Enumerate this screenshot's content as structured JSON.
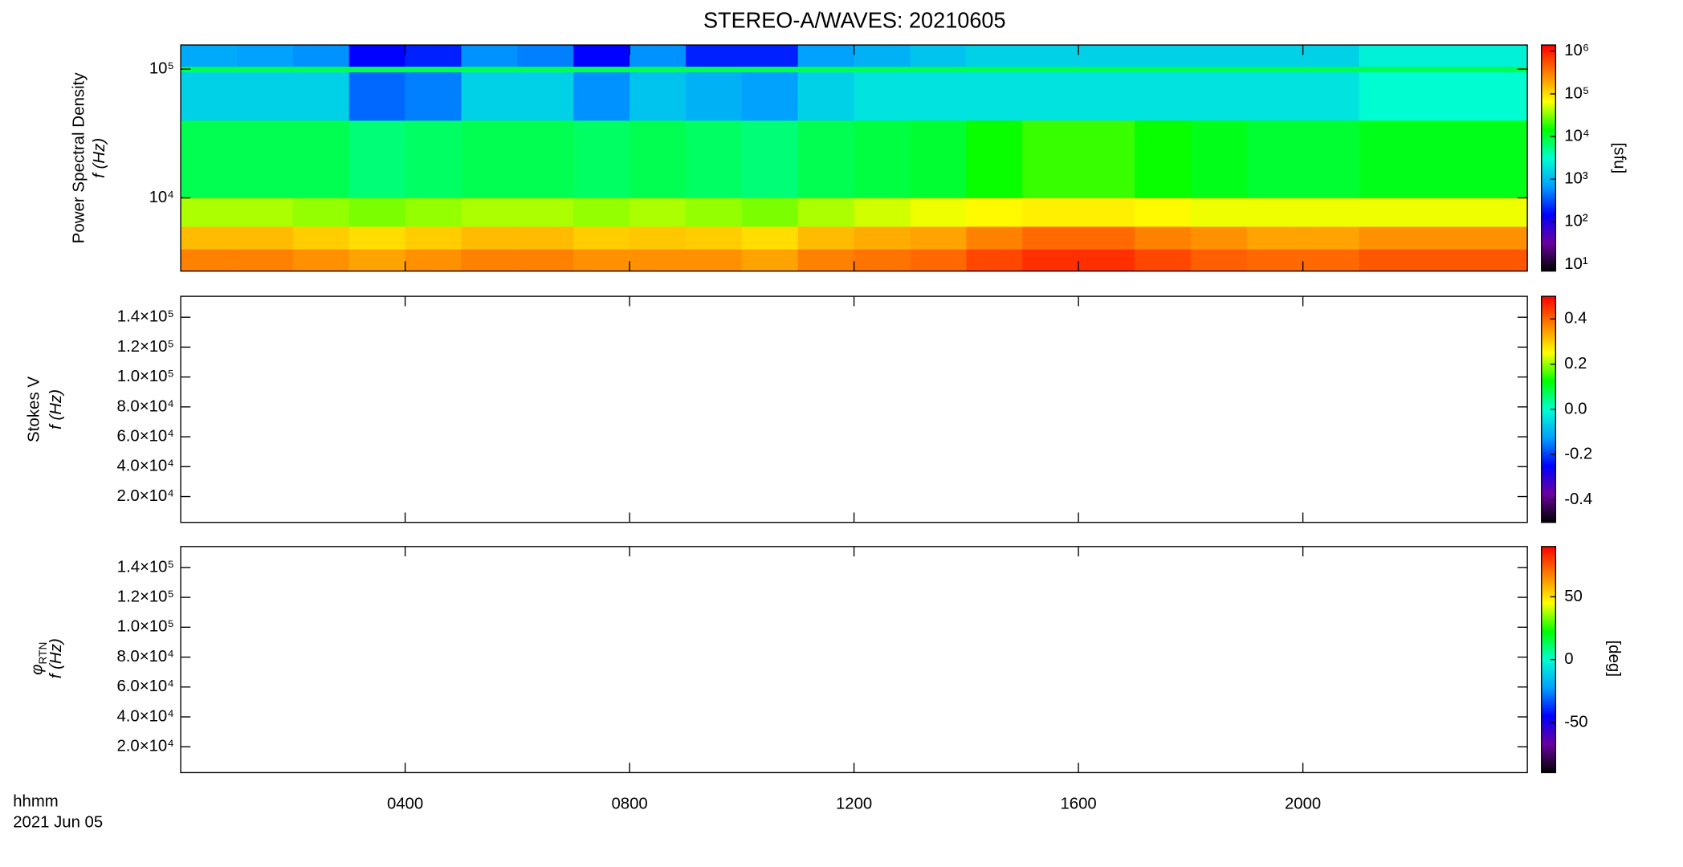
{
  "chart_data": [
    {
      "type": "heatmap",
      "title": "STEREO-A/WAVES: 20210605",
      "ylabel": [
        "Power Spectral Density",
        "f (Hz)"
      ],
      "xlim": [
        0,
        24
      ],
      "xticks": [
        4,
        8,
        12,
        16,
        20
      ],
      "ylog": true,
      "ylim": [
        2700,
        154000
      ],
      "yticks": [
        {
          "value": 10000,
          "label": "10⁴"
        },
        {
          "value": 100000,
          "label": "10⁵"
        }
      ],
      "x_edges": [
        0,
        1,
        2,
        3,
        4,
        5,
        6,
        7,
        8,
        9,
        10,
        11,
        12,
        13,
        14,
        15,
        16,
        17,
        18,
        19,
        20,
        21,
        22,
        23,
        24
      ],
      "y_edges": [
        2700,
        4000,
        6000,
        10000,
        40000,
        95000,
        105000,
        154000
      ],
      "z": [
        [
          300000,
          300000,
          250000,
          200000,
          250000,
          300000,
          300000,
          250000,
          250000,
          250000,
          200000,
          300000,
          350000,
          400000,
          600000,
          800000,
          800000,
          600000,
          450000,
          400000,
          400000,
          500000,
          500000,
          500000
        ],
        [
          150000,
          150000,
          120000,
          100000,
          120000,
          150000,
          150000,
          120000,
          130000,
          120000,
          100000,
          150000,
          180000,
          200000,
          300000,
          400000,
          400000,
          300000,
          250000,
          200000,
          200000,
          250000,
          250000,
          250000
        ],
        [
          40000,
          40000,
          35000,
          30000,
          35000,
          40000,
          40000,
          35000,
          40000,
          35000,
          30000,
          40000,
          50000,
          60000,
          70000,
          80000,
          80000,
          70000,
          60000,
          60000,
          60000,
          60000,
          60000,
          60000
        ],
        [
          8000,
          8000,
          8000,
          6000,
          7000,
          8000,
          8000,
          7000,
          8000,
          7000,
          6000,
          8000,
          9000,
          10000,
          15000,
          20000,
          20000,
          15000,
          12000,
          10000,
          10000,
          12000,
          12000,
          12000
        ],
        [
          1500,
          1500,
          1500,
          400,
          500,
          1500,
          1500,
          600,
          1200,
          900,
          700,
          1500,
          2000,
          2000,
          2000,
          2000,
          2000,
          2000,
          2000,
          2000,
          2000,
          3000,
          3000,
          3000
        ],
        [
          8000,
          8000,
          8000,
          8000,
          8000,
          8000,
          8000,
          8000,
          8000,
          8000,
          8000,
          8000,
          8000,
          8000,
          8000,
          8000,
          8000,
          8000,
          8000,
          8000,
          8000,
          8000,
          8000,
          8000
        ],
        [
          800,
          700,
          600,
          150,
          200,
          600,
          500,
          150,
          600,
          200,
          200,
          700,
          900,
          1200,
          1500,
          1500,
          1500,
          1500,
          1500,
          1500,
          1500,
          2500,
          2500,
          2500
        ]
      ],
      "clog": true,
      "clim": [
        7,
        1400000
      ],
      "cticks": [
        {
          "value": 10,
          "label": "10¹"
        },
        {
          "value": 100,
          "label": "10²"
        },
        {
          "value": 1000,
          "label": "10³"
        },
        {
          "value": 10000,
          "label": "10⁴"
        },
        {
          "value": 100000,
          "label": "10⁵"
        },
        {
          "value": 1000000,
          "label": "10⁶"
        }
      ],
      "clabel": "[sfu]",
      "colorscale": [
        "#000000",
        "#6a00a0",
        "#0000ff",
        "#00a0ff",
        "#00ffd0",
        "#00ff00",
        "#ffff00",
        "#ff8000",
        "#ff0000"
      ]
    },
    {
      "type": "heatmap",
      "ylabel": [
        "Stokes V",
        "f (Hz)"
      ],
      "xlim": [
        0,
        24
      ],
      "xticks": [
        4,
        8,
        12,
        16,
        20
      ],
      "ylim": [
        2700,
        154000
      ],
      "yticks": [
        {
          "value": 20000,
          "label": "2.0×10⁴"
        },
        {
          "value": 40000,
          "label": "4.0×10⁴"
        },
        {
          "value": 60000,
          "label": "6.0×10⁴"
        },
        {
          "value": 80000,
          "label": "8.0×10⁴"
        },
        {
          "value": 100000,
          "label": "1.0×10⁵"
        },
        {
          "value": 120000,
          "label": "1.2×10⁵"
        },
        {
          "value": 140000,
          "label": "1.4×10⁵"
        }
      ],
      "clim": [
        -0.5,
        0.5
      ],
      "cticks": [
        -0.4,
        -0.2,
        {
          "value": 0,
          "label": "0.0"
        },
        0.2,
        0.4
      ],
      "colorscale": [
        "#000000",
        "#6a00a0",
        "#0000ff",
        "#00a0ff",
        "#00ffd0",
        "#00ff00",
        "#ffff00",
        "#ff8000",
        "#ff0000"
      ]
    },
    {
      "type": "heatmap",
      "ylabel_symbol": "φ",
      "ylabel_subscript": "RTN",
      "ylabel_unit": "f (Hz)",
      "xlim": [
        0,
        24
      ],
      "xticks": [
        {
          "value": 4,
          "label": "0400"
        },
        {
          "value": 8,
          "label": "0800"
        },
        {
          "value": 12,
          "label": "1200"
        },
        {
          "value": 16,
          "label": "1600"
        },
        {
          "value": 20,
          "label": "2000"
        }
      ],
      "x_label": "hhmm",
      "date_label": "2021 Jun 05",
      "ylim": [
        2700,
        154000
      ],
      "yticks": [
        {
          "value": 20000,
          "label": "2.0×10⁴"
        },
        {
          "value": 40000,
          "label": "4.0×10⁴"
        },
        {
          "value": 60000,
          "label": "6.0×10⁴"
        },
        {
          "value": 80000,
          "label": "8.0×10⁴"
        },
        {
          "value": 100000,
          "label": "1.0×10⁵"
        },
        {
          "value": 120000,
          "label": "1.2×10⁵"
        },
        {
          "value": 140000,
          "label": "1.4×10⁵"
        }
      ],
      "clim": [
        -90,
        90
      ],
      "cticks": [
        -50,
        0,
        50
      ],
      "clabel": "[deg]",
      "colorscale": [
        "#000000",
        "#6a00a0",
        "#0000ff",
        "#00a0ff",
        "#00ffd0",
        "#00ff00",
        "#ffff00",
        "#ff8000",
        "#ff0000"
      ]
    }
  ]
}
